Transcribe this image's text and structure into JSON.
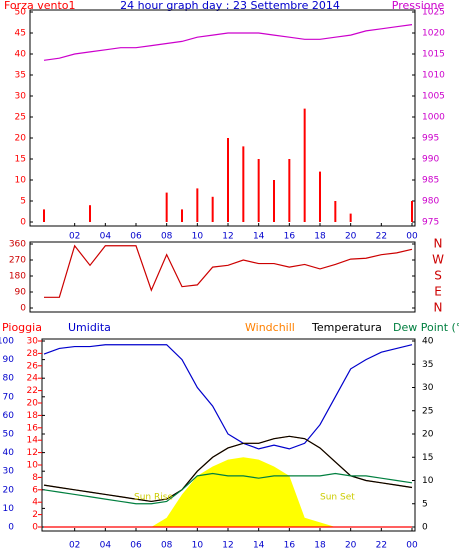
{
  "chart_data": [
    {
      "type": "wind-pressure",
      "title": "24 hour graph day : 23 Settembre 2014",
      "x": [
        0,
        1,
        2,
        3,
        4,
        5,
        6,
        7,
        8,
        9,
        10,
        11,
        12,
        13,
        14,
        15,
        16,
        17,
        18,
        19,
        20,
        21,
        22,
        23,
        24
      ],
      "xlim": [
        0,
        24
      ],
      "xticks": [
        {
          "value": 2,
          "label": "02"
        },
        {
          "value": 4,
          "label": "04"
        },
        {
          "value": 6,
          "label": "06"
        },
        {
          "value": 8,
          "label": "08"
        },
        10,
        12,
        14,
        16,
        18,
        20,
        22,
        {
          "value": 24,
          "label": "00"
        }
      ],
      "ylim": [
        0,
        50
      ],
      "yticks": [
        0,
        5,
        10,
        15,
        20,
        25,
        30,
        35,
        40,
        45,
        50
      ],
      "y2lim": [
        975,
        1025
      ],
      "y2ticks": [
        975,
        980,
        985,
        990,
        995,
        1000,
        1005,
        1010,
        1015,
        1020,
        1025
      ],
      "series": [
        {
          "name": "Forza vento1",
          "color": "#ff0000",
          "values": [
            3,
            0,
            0,
            4,
            0,
            0,
            0,
            0,
            7,
            3,
            8,
            6,
            20,
            18,
            15,
            10,
            15,
            27,
            12,
            5,
            2,
            0,
            0,
            0,
            5
          ]
        },
        {
          "name": "Pressione",
          "color": "#cc00cc",
          "axis": "y2",
          "values": [
            1013.5,
            1014,
            1015,
            1015.5,
            1016,
            1016.5,
            1016.5,
            1017,
            1017.5,
            1018,
            1019,
            1019.5,
            1020,
            1020,
            1020,
            1019.5,
            1019,
            1018.5,
            1018.5,
            1019,
            1019.5,
            1020.5,
            1021,
            1021.5,
            1022
          ]
        }
      ]
    },
    {
      "type": "direction",
      "x": [
        0,
        1,
        2,
        3,
        4,
        5,
        6,
        7,
        8,
        9,
        10,
        11,
        12,
        13,
        14,
        15,
        16,
        17,
        18,
        19,
        20,
        21,
        22,
        23,
        24
      ],
      "xlim": [
        0,
        24
      ],
      "ylim": [
        0,
        360
      ],
      "yticks": [
        0,
        90,
        180,
        270,
        360
      ],
      "y2lim": [
        0,
        360
      ],
      "y2ticks": [
        {
          "value": 360,
          "label": "N"
        },
        {
          "value": 270,
          "label": "W"
        },
        {
          "value": 180,
          "label": "S"
        },
        {
          "value": 90,
          "label": "E"
        },
        {
          "value": 0,
          "label": "N"
        }
      ],
      "series": [
        {
          "color": "#cc0000",
          "values": [
            60,
            60,
            350,
            240,
            350,
            350,
            350,
            100,
            300,
            120,
            130,
            230,
            240,
            270,
            250,
            250,
            230,
            245,
            220,
            245,
            275,
            280,
            300,
            310,
            330
          ]
        }
      ]
    },
    {
      "type": "meteo",
      "x": [
        0,
        1,
        2,
        3,
        4,
        5,
        6,
        7,
        8,
        9,
        10,
        11,
        12,
        13,
        14,
        15,
        16,
        17,
        18,
        19,
        20,
        21,
        22,
        23,
        24
      ],
      "xlim": [
        0,
        24
      ],
      "xticks": [
        {
          "value": 2,
          "label": "02"
        },
        {
          "value": 4,
          "label": "04"
        },
        {
          "value": 6,
          "label": "06"
        },
        {
          "value": 8,
          "label": "08"
        },
        10,
        12,
        14,
        16,
        18,
        20,
        22,
        {
          "value": 24,
          "label": "00"
        }
      ],
      "ylim": [
        0,
        100
      ],
      "yticks": [
        0,
        10,
        20,
        30,
        40,
        50,
        60,
        70,
        80,
        90,
        100
      ],
      "y3lim": [
        0,
        30
      ],
      "y3ticks": [
        0,
        2,
        4,
        6,
        8,
        10,
        12,
        14,
        16,
        18,
        20,
        22,
        24,
        26,
        28,
        30
      ],
      "y2lim": [
        0,
        40
      ],
      "y2ticks": [
        0,
        5,
        10,
        15,
        20,
        25,
        30,
        35,
        40
      ],
      "annotations": [
        "Sun Rise",
        "Sun Set"
      ],
      "series": [
        {
          "color": "#ffff00",
          "axis": "y2",
          "values": [
            0,
            0,
            0,
            0,
            0,
            0,
            0,
            0,
            2,
            7,
            11,
            13,
            14.5,
            15,
            14.5,
            13,
            11,
            2,
            1,
            0,
            0,
            0,
            0,
            0,
            0
          ]
        },
        {
          "name": "Pioggia",
          "color": "#ff0000",
          "axis": "y3",
          "values": [
            0,
            0,
            0,
            0,
            0,
            0,
            0,
            0,
            0,
            0,
            0,
            0,
            0,
            0,
            0,
            0,
            0,
            0,
            0,
            0,
            0,
            0,
            0,
            0,
            0
          ]
        },
        {
          "name": "Umidita",
          "color": "#0000cc",
          "values": [
            93,
            96,
            97,
            97,
            98,
            98,
            98,
            98,
            98,
            90,
            75,
            65,
            50,
            45,
            42,
            44,
            42,
            45,
            55,
            70,
            85,
            90,
            94,
            96,
            98
          ]
        },
        {
          "name": "Windchill",
          "color": "#ff8000",
          "axis": "y2",
          "values": [
            9,
            8.5,
            8,
            7.5,
            7,
            6.5,
            6,
            5.5,
            6,
            8,
            12,
            15,
            17,
            18,
            18,
            19,
            19.5,
            19,
            17,
            14,
            11,
            10,
            9.5,
            9,
            8.5
          ]
        },
        {
          "name": "Temperatura",
          "color": "#000000",
          "axis": "y2",
          "values": [
            9,
            8.5,
            8,
            7.5,
            7,
            6.5,
            6,
            5.5,
            6,
            8,
            12,
            15,
            17,
            18,
            18,
            19,
            19.5,
            19,
            17,
            14,
            11,
            10,
            9.5,
            9,
            8.5
          ]
        },
        {
          "name": "Dew Point (°C",
          "color": "#007f3f",
          "axis": "y2",
          "values": [
            8,
            7.5,
            7,
            6.5,
            6,
            5.5,
            5,
            5,
            5.5,
            8,
            11,
            11.5,
            11,
            11,
            10.5,
            11,
            11,
            11,
            11,
            11.5,
            11,
            11,
            10.5,
            10,
            9.5
          ]
        }
      ]
    }
  ]
}
